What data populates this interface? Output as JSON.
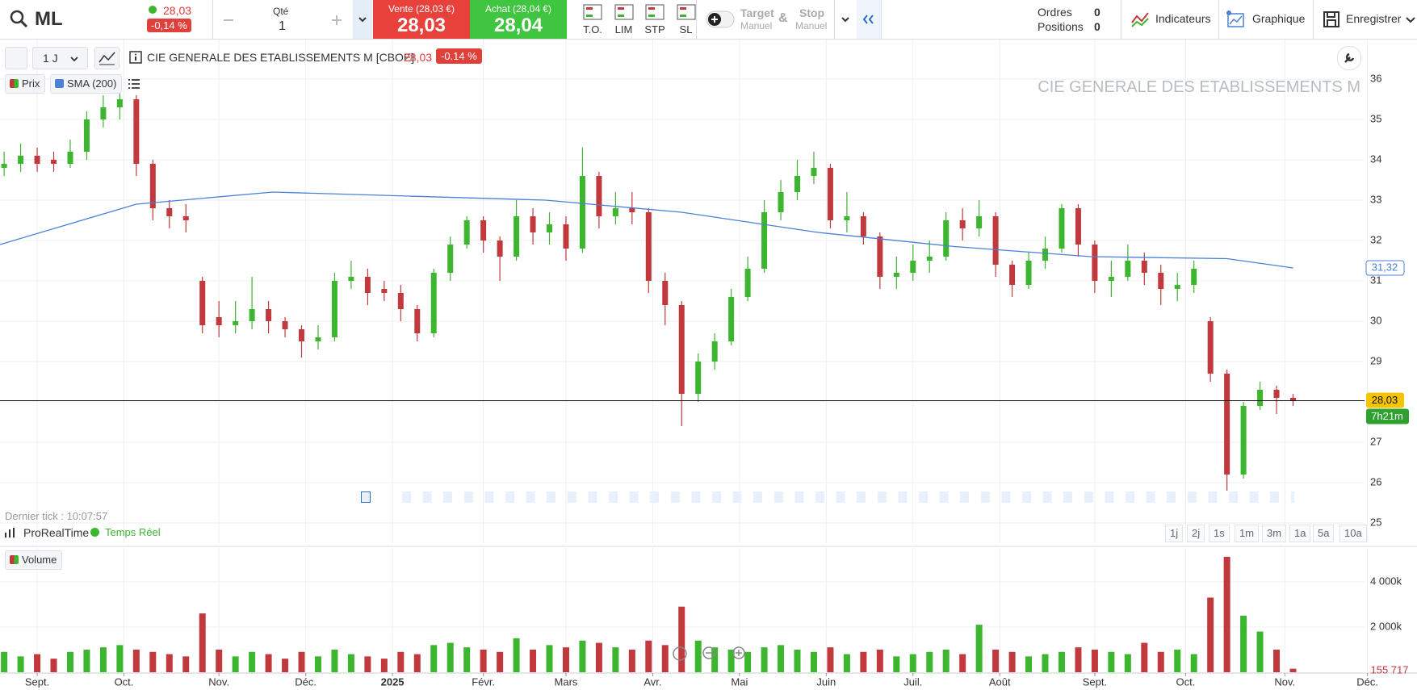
{
  "toolbar": {
    "symbol": "ML",
    "last": "28,03",
    "change": "-0,14 %",
    "qty_label": "Qté",
    "qty": "1",
    "sell_label": "Vente (28,03 €)",
    "sell": "28,03",
    "buy_label": "Achat (28,04 €)",
    "buy": "28,04",
    "order_types": [
      "T.O.",
      "LIM",
      "STP",
      "SL"
    ],
    "target": "Target",
    "target_mode": "Manuel",
    "and": "&",
    "stop": "Stop",
    "stop_mode": "Manuel",
    "orders_label": "Ordres",
    "orders": "0",
    "positions_label": "Positions",
    "positions": "0",
    "tools": [
      "Indicateurs",
      "Graphique",
      "Enregistrer"
    ]
  },
  "chart_header": {
    "interval": "1 J",
    "instrument": "CIE GENERALE DES ETABLISSEMENTS M [CBOE]",
    "price": "28,03",
    "change": "-0.14 %",
    "watermark": "CIE GENERALE DES ETABLISSEMENTS M",
    "last_tick": "Dernier tick : 10:07:57",
    "provider": "ProRealTime",
    "feed": "Temps Réel",
    "periods": [
      "1j",
      "2j",
      "1s",
      "1m",
      "3m",
      "1a",
      "5a",
      "10a"
    ]
  },
  "chart_data": {
    "type": "candlestick",
    "price_name": "Prix",
    "up_color": "#3cb52f",
    "down_color": "#c1393c",
    "x": [
      1,
      5,
      9,
      13,
      17,
      21,
      25,
      29,
      33,
      37,
      41,
      45,
      49,
      53,
      57,
      61,
      65,
      69,
      73,
      77,
      81,
      85,
      89,
      93,
      97,
      101,
      105,
      109,
      113,
      117,
      121,
      125,
      129,
      133,
      137,
      141,
      145,
      149,
      153,
      157,
      161,
      165,
      169,
      173,
      177,
      181,
      185,
      189,
      193,
      197,
      201,
      205,
      209,
      213,
      217,
      221,
      225,
      229,
      233,
      237,
      241,
      245,
      249,
      253,
      257,
      261,
      265,
      269,
      273,
      277,
      281,
      285,
      289,
      293,
      297,
      301,
      305,
      309,
      313
    ],
    "open": [
      33.8,
      33.9,
      34.1,
      34.0,
      33.9,
      34.2,
      35.0,
      35.3,
      35.5,
      33.9,
      32.8,
      32.6,
      31.0,
      30.1,
      29.9,
      30.0,
      30.3,
      30.0,
      29.8,
      29.5,
      29.6,
      31.0,
      31.1,
      30.8,
      30.7,
      30.3,
      29.7,
      31.2,
      31.9,
      32.5,
      32.0,
      31.6,
      32.6,
      32.2,
      32.4,
      31.8,
      33.6,
      32.6,
      32.8,
      32.7,
      31.0,
      30.4,
      28.2,
      29.0,
      29.5,
      30.6,
      31.3,
      32.7,
      33.2,
      33.6,
      33.8,
      32.5,
      32.6,
      32.1,
      31.1,
      31.2,
      31.5,
      31.6,
      32.5,
      32.3,
      32.6,
      31.4,
      30.9,
      31.5,
      31.8,
      32.8,
      31.9,
      31.0,
      31.1,
      31.5,
      31.2,
      30.8,
      30.9,
      30.0,
      28.7,
      26.2,
      27.9,
      28.3,
      28.1
    ],
    "high": [
      34.2,
      34.4,
      34.3,
      34.2,
      34.5,
      35.2,
      35.6,
      35.8,
      35.6,
      34.0,
      33.0,
      32.9,
      31.1,
      30.5,
      30.5,
      31.1,
      30.5,
      30.1,
      29.9,
      29.9,
      31.2,
      31.5,
      31.3,
      31.0,
      30.9,
      30.4,
      31.3,
      32.1,
      32.6,
      32.6,
      32.1,
      33.0,
      32.8,
      32.7,
      32.6,
      34.3,
      33.7,
      33.2,
      33.2,
      32.8,
      31.2,
      30.5,
      29.2,
      29.7,
      30.8,
      31.6,
      33.0,
      33.5,
      34.0,
      34.2,
      33.9,
      33.2,
      32.7,
      32.2,
      31.6,
      31.9,
      32.0,
      32.7,
      32.8,
      33.0,
      32.7,
      31.5,
      31.7,
      32.1,
      32.9,
      32.9,
      32.0,
      31.5,
      31.9,
      31.7,
      31.4,
      31.2,
      31.5,
      30.1,
      28.8,
      28.0,
      28.5,
      28.4,
      28.2
    ],
    "low": [
      33.6,
      33.7,
      33.7,
      33.7,
      33.8,
      34.0,
      34.8,
      35.0,
      33.6,
      32.5,
      32.3,
      32.2,
      29.7,
      29.6,
      29.7,
      29.8,
      29.7,
      29.6,
      29.1,
      29.3,
      29.5,
      30.8,
      30.4,
      30.5,
      30.0,
      29.5,
      29.6,
      31.0,
      31.8,
      31.7,
      31.0,
      31.5,
      31.9,
      31.9,
      31.5,
      31.7,
      32.3,
      32.4,
      32.4,
      30.7,
      29.9,
      27.4,
      28.0,
      28.8,
      29.4,
      30.5,
      31.2,
      32.5,
      33.0,
      33.4,
      32.3,
      32.2,
      31.9,
      30.8,
      30.8,
      31.0,
      31.2,
      31.5,
      32.0,
      32.1,
      31.1,
      30.6,
      30.8,
      31.3,
      31.7,
      31.6,
      30.7,
      30.6,
      31.0,
      30.9,
      30.4,
      30.5,
      30.7,
      28.5,
      25.8,
      26.1,
      27.8,
      27.7,
      27.9
    ],
    "close": [
      33.9,
      34.1,
      33.9,
      33.9,
      34.2,
      35.0,
      35.3,
      35.5,
      33.9,
      32.8,
      32.6,
      32.5,
      29.9,
      29.9,
      30.0,
      30.3,
      30.0,
      29.8,
      29.5,
      29.6,
      31.0,
      31.1,
      30.7,
      30.7,
      30.3,
      29.7,
      31.2,
      31.9,
      32.5,
      32.0,
      31.6,
      32.6,
      32.2,
      32.4,
      31.8,
      33.6,
      32.6,
      32.8,
      32.7,
      31.0,
      30.4,
      28.2,
      29.0,
      29.5,
      30.6,
      31.3,
      32.7,
      33.2,
      33.6,
      33.8,
      32.5,
      32.6,
      32.1,
      31.1,
      31.2,
      31.5,
      31.6,
      32.5,
      32.3,
      32.6,
      31.4,
      30.9,
      31.5,
      31.8,
      32.8,
      31.9,
      31.0,
      31.1,
      31.5,
      31.2,
      30.8,
      30.9,
      31.3,
      28.7,
      26.2,
      27.9,
      28.3,
      28.1,
      28.03
    ],
    "xlim": [
      0,
      343
    ],
    "xticks": [
      {
        "value": 9,
        "label": "Sept."
      },
      {
        "value": 30,
        "label": "Oct."
      },
      {
        "value": 53,
        "label": "Nov."
      },
      {
        "value": 74,
        "label": "Déc."
      },
      {
        "value": 95,
        "label": "2025"
      },
      {
        "value": 117,
        "label": "Févr."
      },
      {
        "value": 137,
        "label": "Mars"
      },
      {
        "value": 158,
        "label": "Avr."
      },
      {
        "value": 179,
        "label": "Mai"
      },
      {
        "value": 200,
        "label": "Juin"
      },
      {
        "value": 221,
        "label": "Juil."
      },
      {
        "value": 242,
        "label": "Août"
      },
      {
        "value": 265,
        "label": "Sept."
      },
      {
        "value": 287,
        "label": "Oct."
      },
      {
        "value": 311,
        "label": "Nov."
      },
      {
        "value": 331,
        "label": "Déc."
      }
    ],
    "ylim": [
      24.5,
      37
    ],
    "yticks": [
      25,
      26,
      27,
      28,
      29,
      30,
      31,
      32,
      33,
      34,
      35,
      36
    ],
    "grid": true,
    "price_line": {
      "value": 28.03,
      "value_label": "28,03",
      "timer": "7h21m"
    },
    "sma": {
      "name": "SMA (200)",
      "color": "#4a80d6",
      "x": [
        0,
        33,
        66,
        99,
        132,
        165,
        198,
        231,
        264,
        297,
        313
      ],
      "values": [
        31.9,
        32.9,
        33.2,
        33.1,
        33.0,
        32.7,
        32.2,
        31.85,
        31.6,
        31.55,
        31.32
      ],
      "last_label": "31,32"
    },
    "volume": {
      "name": "Volume",
      "ylim": [
        0,
        5600000
      ],
      "yticks": [
        {
          "value": 2000000,
          "label": "2 000k"
        },
        {
          "value": 4000000,
          "label": "4 000k"
        }
      ],
      "last_label": "155 717",
      "values": [
        900000,
        700000,
        800000,
        600000,
        900000,
        1000000,
        1100000,
        1200000,
        1000000,
        900000,
        800000,
        700000,
        2600000,
        1000000,
        700000,
        900000,
        800000,
        600000,
        900000,
        700000,
        1000000,
        800000,
        700000,
        600000,
        900000,
        800000,
        1200000,
        1300000,
        1100000,
        1000000,
        900000,
        1500000,
        1000000,
        1200000,
        1100000,
        1400000,
        1300000,
        1100000,
        1000000,
        1400000,
        1200000,
        2900000,
        1400000,
        1100000,
        1000000,
        900000,
        1100000,
        1200000,
        1000000,
        900000,
        1100000,
        800000,
        900000,
        1000000,
        700000,
        800000,
        900000,
        1000000,
        800000,
        2100000,
        1000000,
        900000,
        700000,
        800000,
        900000,
        1100000,
        1000000,
        900000,
        800000,
        1300000,
        900000,
        1000000,
        800000,
        3300000,
        5100000,
        2500000,
        1800000,
        1000000,
        155717
      ]
    }
  }
}
